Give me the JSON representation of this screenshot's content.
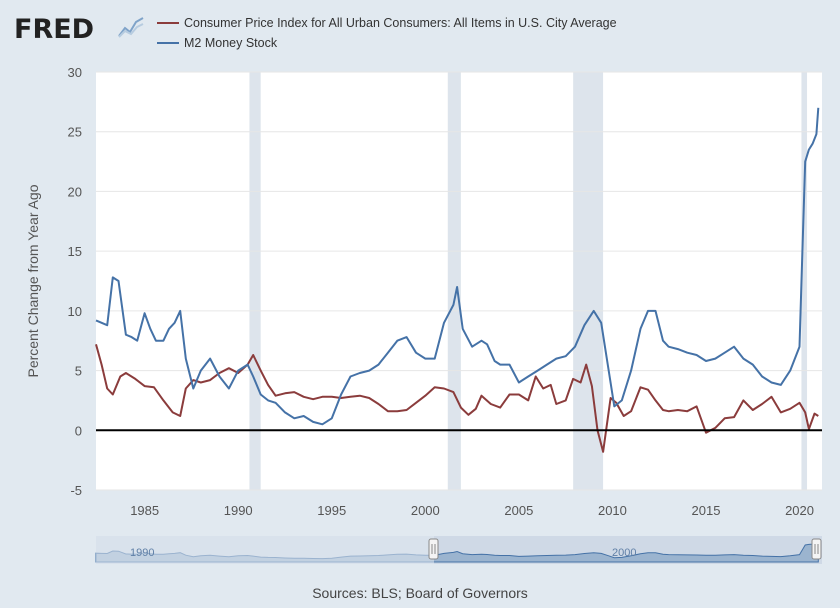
{
  "header": {
    "logo": "FRED"
  },
  "chart_data": {
    "type": "line",
    "legend": [
      {
        "name": "Consumer Price Index for All Urban Consumers: All Items in U.S. City Average",
        "color": "#8b3c3c"
      },
      {
        "name": "M2 Money Stock",
        "color": "#4572a7"
      }
    ],
    "ylabel": "Percent Change from Year Ago",
    "ylim": [
      -5,
      30
    ],
    "yticks": [
      -5,
      0,
      5,
      10,
      15,
      20,
      25,
      30
    ],
    "xlim": [
      1982.4,
      2021.2
    ],
    "xticks": [
      1985,
      1990,
      1995,
      2000,
      2005,
      2010,
      2015,
      2020
    ],
    "recessions": [
      [
        1990.6,
        1991.2
      ],
      [
        2001.2,
        2001.9
      ],
      [
        2007.9,
        2009.5
      ],
      [
        2020.1,
        2020.4
      ]
    ],
    "series": [
      {
        "name": "Consumer Price Index for All Urban Consumers: All Items in U.S. City Average",
        "color": "#8b3c3c",
        "x": [
          1982.4,
          1982.7,
          1983.0,
          1983.3,
          1983.7,
          1984.0,
          1984.5,
          1985.0,
          1985.5,
          1986.0,
          1986.5,
          1986.9,
          1987.2,
          1987.6,
          1988.0,
          1988.5,
          1989.0,
          1989.5,
          1990.0,
          1990.5,
          1990.8,
          1991.2,
          1991.6,
          1992.0,
          1992.5,
          1993.0,
          1993.5,
          1994.0,
          1994.5,
          1995.0,
          1995.5,
          1996.0,
          1996.5,
          1997.0,
          1997.5,
          1998.0,
          1998.5,
          1999.0,
          1999.5,
          2000.0,
          2000.5,
          2001.0,
          2001.5,
          2001.9,
          2002.3,
          2002.7,
          2003.0,
          2003.5,
          2004.0,
          2004.5,
          2005.0,
          2005.5,
          2005.9,
          2006.3,
          2006.7,
          2007.0,
          2007.5,
          2007.9,
          2008.3,
          2008.6,
          2008.9,
          2009.2,
          2009.5,
          2009.9,
          2010.2,
          2010.6,
          2011.0,
          2011.5,
          2011.9,
          2012.3,
          2012.7,
          2013.0,
          2013.5,
          2014.0,
          2014.5,
          2015.0,
          2015.5,
          2016.0,
          2016.5,
          2017.0,
          2017.5,
          2018.0,
          2018.5,
          2019.0,
          2019.5,
          2020.0,
          2020.3,
          2020.5,
          2020.8,
          2021.0
        ],
        "values": [
          7.2,
          5.5,
          3.5,
          3.0,
          4.5,
          4.8,
          4.3,
          3.7,
          3.6,
          2.5,
          1.5,
          1.2,
          3.5,
          4.2,
          4.0,
          4.2,
          4.8,
          5.2,
          4.8,
          5.5,
          6.3,
          5.0,
          3.8,
          2.9,
          3.1,
          3.2,
          2.8,
          2.6,
          2.8,
          2.8,
          2.7,
          2.8,
          2.9,
          2.7,
          2.2,
          1.6,
          1.6,
          1.7,
          2.3,
          2.9,
          3.6,
          3.5,
          3.2,
          1.9,
          1.3,
          1.8,
          2.9,
          2.2,
          1.9,
          3.0,
          3.0,
          2.5,
          4.5,
          3.5,
          3.8,
          2.2,
          2.5,
          4.3,
          4.0,
          5.5,
          3.7,
          0.0,
          -1.8,
          2.7,
          2.3,
          1.2,
          1.6,
          3.6,
          3.4,
          2.5,
          1.7,
          1.6,
          1.7,
          1.6,
          2.0,
          -0.2,
          0.2,
          1.0,
          1.1,
          2.5,
          1.7,
          2.2,
          2.8,
          1.5,
          1.8,
          2.3,
          1.5,
          0.1,
          1.4,
          1.2
        ]
      },
      {
        "name": "M2 Money Stock",
        "color": "#4572a7",
        "x": [
          1982.4,
          1982.7,
          1983.0,
          1983.3,
          1983.6,
          1984.0,
          1984.3,
          1984.6,
          1985.0,
          1985.3,
          1985.6,
          1986.0,
          1986.3,
          1986.6,
          1986.9,
          1987.2,
          1987.6,
          1988.0,
          1988.5,
          1989.0,
          1989.5,
          1990.0,
          1990.5,
          1990.8,
          1991.2,
          1991.6,
          1992.0,
          1992.5,
          1993.0,
          1993.5,
          1994.0,
          1994.5,
          1995.0,
          1995.5,
          1996.0,
          1996.5,
          1997.0,
          1997.5,
          1998.0,
          1998.5,
          1999.0,
          1999.5,
          2000.0,
          2000.5,
          2001.0,
          2001.5,
          2001.7,
          2002.0,
          2002.5,
          2003.0,
          2003.3,
          2003.7,
          2004.0,
          2004.5,
          2005.0,
          2005.5,
          2006.0,
          2006.5,
          2007.0,
          2007.5,
          2008.0,
          2008.5,
          2009.0,
          2009.4,
          2009.8,
          2010.1,
          2010.5,
          2011.0,
          2011.5,
          2011.9,
          2012.3,
          2012.7,
          2013.0,
          2013.5,
          2014.0,
          2014.5,
          2015.0,
          2015.5,
          2016.0,
          2016.5,
          2017.0,
          2017.5,
          2018.0,
          2018.5,
          2019.0,
          2019.5,
          2020.0,
          2020.15,
          2020.3,
          2020.5,
          2020.7,
          2020.9,
          2021.0
        ],
        "values": [
          9.2,
          9.0,
          8.8,
          12.8,
          12.5,
          8.0,
          7.8,
          7.5,
          9.8,
          8.5,
          7.5,
          7.5,
          8.5,
          9.0,
          10.0,
          6.0,
          3.5,
          5.0,
          6.0,
          4.5,
          3.5,
          5.0,
          5.5,
          4.5,
          3.0,
          2.5,
          2.3,
          1.5,
          1.0,
          1.2,
          0.7,
          0.5,
          1.0,
          3.0,
          4.5,
          4.8,
          5.0,
          5.5,
          6.5,
          7.5,
          7.8,
          6.5,
          6.0,
          6.0,
          9.0,
          10.5,
          12.0,
          8.5,
          7.0,
          7.5,
          7.2,
          5.8,
          5.5,
          5.5,
          4.0,
          4.5,
          5.0,
          5.5,
          6.0,
          6.2,
          7.0,
          8.8,
          10.0,
          9.0,
          5.0,
          2.0,
          2.5,
          5.0,
          8.5,
          10.0,
          10.0,
          7.5,
          7.0,
          6.8,
          6.5,
          6.3,
          5.8,
          6.0,
          6.5,
          7.0,
          6.0,
          5.5,
          4.5,
          4.0,
          3.8,
          5.0,
          7.0,
          15.0,
          22.5,
          23.5,
          24.0,
          24.8,
          27.0
        ]
      }
    ]
  },
  "navigator": {
    "labels": [
      "1990",
      "2000"
    ]
  },
  "source": "Sources: BLS; Board of Governors"
}
